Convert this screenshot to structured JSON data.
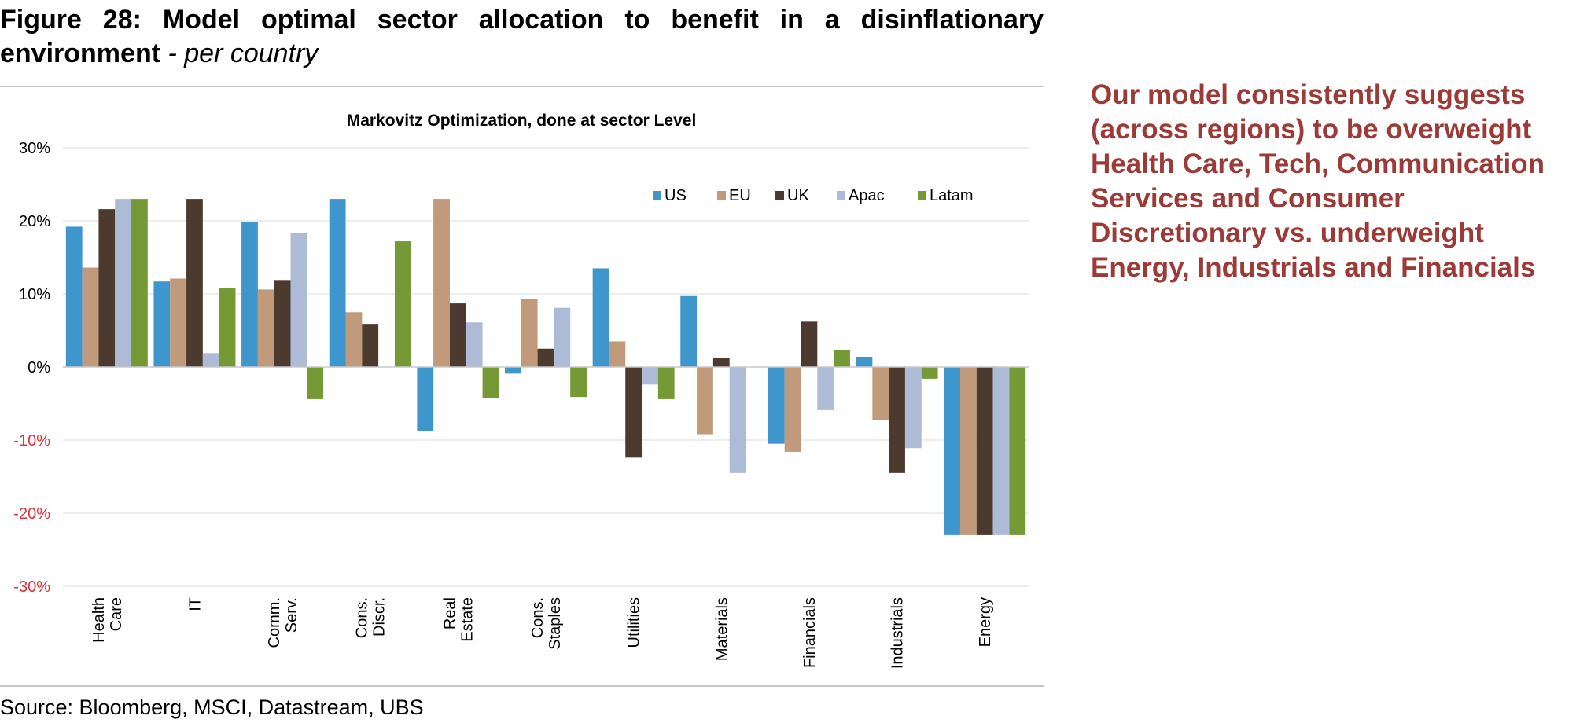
{
  "figure": {
    "title_bold": "Figure 28: Model optimal sector allocation to benefit in a disinflationary environment",
    "title_separator": " - ",
    "title_italic": "per country"
  },
  "source": "Source: Bloomberg, MSCI, Datastream, UBS",
  "commentary": "Our model consistently suggests (across regions) to be overweight Health Care, Tech, Communication Services and Consumer Discretionary vs. underweight Energy, Industrials and Financials",
  "chart_data": {
    "type": "bar",
    "title": "Markovitz Optimization, done at sector Level",
    "categories": [
      [
        "Health",
        "Care"
      ],
      [
        "IT"
      ],
      [
        "Comm.",
        "Serv."
      ],
      [
        "Cons.",
        "Discr."
      ],
      [
        "Real",
        "Estate"
      ],
      [
        "Cons.",
        "Staples"
      ],
      [
        "Utilities"
      ],
      [
        "Materials"
      ],
      [
        "Financials"
      ],
      [
        "Industrials"
      ],
      [
        "Energy"
      ]
    ],
    "series": [
      {
        "name": "US",
        "color": "#3f96cc",
        "values": [
          19.2,
          11.7,
          19.8,
          23.0,
          -8.8,
          -0.9,
          13.5,
          9.7,
          -10.5,
          1.4,
          -23.0
        ]
      },
      {
        "name": "EU",
        "color": "#c09a7a",
        "values": [
          13.6,
          12.1,
          10.6,
          7.5,
          23.0,
          9.3,
          3.5,
          -9.2,
          -11.6,
          -7.3,
          -23.0
        ]
      },
      {
        "name": "UK",
        "color": "#4d3a2e",
        "values": [
          21.6,
          23.0,
          11.9,
          5.9,
          8.7,
          2.5,
          -12.4,
          1.2,
          6.2,
          -14.5,
          -23.0
        ]
      },
      {
        "name": "Apac",
        "color": "#adbbd6",
        "values": [
          23.0,
          1.9,
          18.3,
          0.0,
          6.1,
          8.1,
          -2.4,
          -14.5,
          -5.9,
          -11.1,
          -23.0
        ]
      },
      {
        "name": "Latam",
        "color": "#759a35",
        "values": [
          23.0,
          10.8,
          -4.4,
          17.2,
          -4.3,
          -4.1,
          -4.4,
          0.0,
          2.3,
          -1.6,
          -23.0
        ]
      }
    ],
    "yticks": [
      "30%",
      "20%",
      "10%",
      "0%",
      "-10%",
      "-20%",
      "-30%"
    ],
    "ylim": [
      -30,
      30
    ],
    "negative_tick_color": "#e0303a",
    "grid": true,
    "legend_position": "top-right"
  }
}
